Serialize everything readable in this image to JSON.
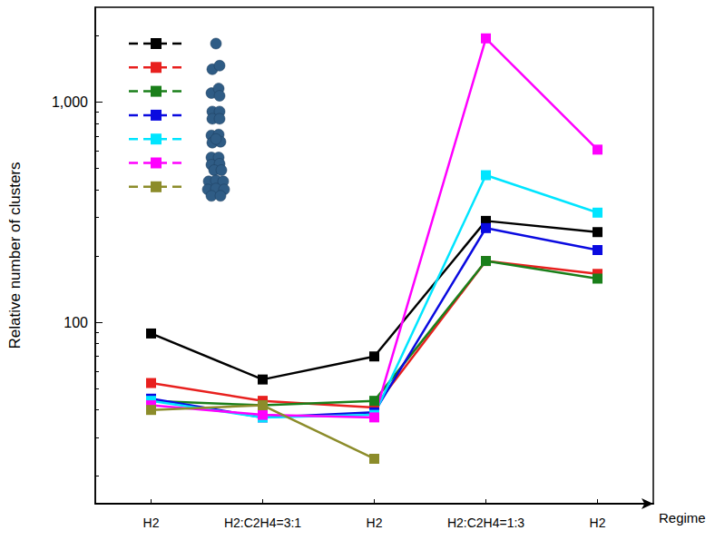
{
  "chart_data": {
    "type": "line",
    "categories": [
      "H2",
      "H2:C2H4=3:1",
      "H2",
      "H2:C2H4=1:3",
      "H2"
    ],
    "x_label": "Regime",
    "y_label": "Relative number of clusters",
    "log": "y",
    "ylim": [
      15,
      2700
    ],
    "yticks": [
      100,
      {
        "value": 1000,
        "label": "1,000"
      }
    ],
    "grid": false,
    "marker": "square",
    "line_style": "solid",
    "series": [
      {
        "color": "#000000",
        "values": [
          89,
          55,
          70,
          289,
          257
        ]
      },
      {
        "color": "#e8201e",
        "values": [
          53,
          44,
          41,
          190,
          166
        ]
      },
      {
        "color": "#1a7f1a",
        "values": [
          44,
          42,
          44,
          190,
          158
        ]
      },
      {
        "color": "#0a0ae0",
        "values": [
          45,
          37,
          39,
          268,
          213
        ]
      },
      {
        "color": "#00e5ff",
        "values": [
          44,
          37,
          38,
          466,
          315
        ]
      },
      {
        "color": "#ff00ff",
        "values": [
          42,
          38,
          37,
          1950,
          609
        ]
      },
      {
        "color": "#8c8c2a",
        "values": [
          40,
          42,
          24,
          null,
          null
        ]
      }
    ]
  }
}
